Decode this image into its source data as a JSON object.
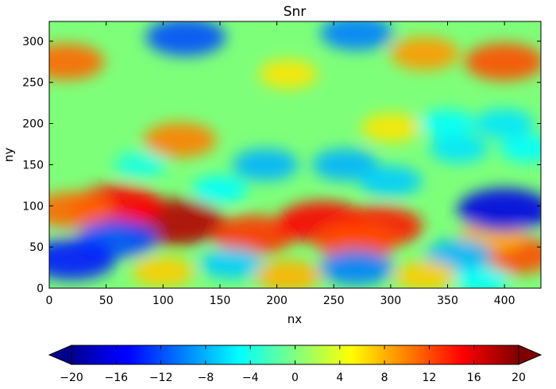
{
  "chart_data": {
    "type": "heatmap",
    "title": "Snr",
    "xlabel": "nx",
    "ylabel": "ny",
    "xlim": [
      0,
      432
    ],
    "ylim": [
      0,
      324
    ],
    "x_ticks": [
      0,
      50,
      100,
      150,
      200,
      250,
      300,
      350,
      400
    ],
    "y_ticks": [
      0,
      50,
      100,
      150,
      200,
      250,
      300
    ],
    "x_tick_labels": [
      "0",
      "50",
      "100",
      "150",
      "200",
      "250",
      "300",
      "350",
      "400"
    ],
    "y_tick_labels": [
      "0",
      "50",
      "100",
      "150",
      "200",
      "250",
      "300"
    ],
    "colorbar": {
      "orientation": "horizontal",
      "range": [
        -20,
        20
      ],
      "extend": "both",
      "ticks": [
        -20,
        -16,
        -12,
        -8,
        -4,
        0,
        4,
        8,
        12,
        16,
        20
      ],
      "tick_labels": [
        "−20",
        "−16",
        "−12",
        "−8",
        "−4",
        "0",
        "4",
        "8",
        "12",
        "16",
        "20"
      ],
      "colormap": "jet"
    },
    "grid": false,
    "features": [
      {
        "x": 110,
        "y": 80,
        "value": 18
      },
      {
        "x": 60,
        "y": 100,
        "value": 15
      },
      {
        "x": 20,
        "y": 95,
        "value": 11
      },
      {
        "x": 180,
        "y": 65,
        "value": 13
      },
      {
        "x": 240,
        "y": 80,
        "value": 15
      },
      {
        "x": 290,
        "y": 75,
        "value": 14
      },
      {
        "x": 270,
        "y": 55,
        "value": 12
      },
      {
        "x": 410,
        "y": 40,
        "value": 12
      },
      {
        "x": 390,
        "y": 65,
        "value": 8
      },
      {
        "x": 400,
        "y": 275,
        "value": 12
      },
      {
        "x": 15,
        "y": 275,
        "value": 11
      },
      {
        "x": 330,
        "y": 285,
        "value": 9
      },
      {
        "x": 115,
        "y": 180,
        "value": 10
      },
      {
        "x": 210,
        "y": 260,
        "value": 6
      },
      {
        "x": 300,
        "y": 195,
        "value": 6
      },
      {
        "x": 60,
        "y": 60,
        "value": -12
      },
      {
        "x": 20,
        "y": 35,
        "value": -14
      },
      {
        "x": 400,
        "y": 95,
        "value": -16
      },
      {
        "x": 120,
        "y": 305,
        "value": -12
      },
      {
        "x": 270,
        "y": 310,
        "value": -10
      },
      {
        "x": 190,
        "y": 150,
        "value": -8
      },
      {
        "x": 260,
        "y": 150,
        "value": -8
      },
      {
        "x": 300,
        "y": 130,
        "value": -7
      },
      {
        "x": 360,
        "y": 170,
        "value": -6
      },
      {
        "x": 420,
        "y": 170,
        "value": -5
      },
      {
        "x": 400,
        "y": 200,
        "value": -6
      },
      {
        "x": 350,
        "y": 200,
        "value": -5
      },
      {
        "x": 150,
        "y": 120,
        "value": -5
      },
      {
        "x": 80,
        "y": 150,
        "value": -4
      },
      {
        "x": 160,
        "y": 30,
        "value": -7
      },
      {
        "x": 270,
        "y": 25,
        "value": -10
      },
      {
        "x": 360,
        "y": 40,
        "value": -8
      },
      {
        "x": 210,
        "y": 15,
        "value": 8
      },
      {
        "x": 100,
        "y": 20,
        "value": 7
      },
      {
        "x": 330,
        "y": 15,
        "value": 7
      },
      {
        "x": 380,
        "y": 10,
        "value": -5
      }
    ]
  }
}
